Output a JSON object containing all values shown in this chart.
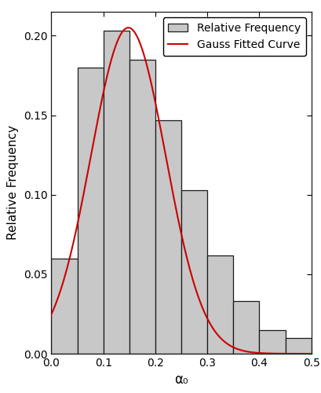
{
  "bin_edges": [
    0.0,
    0.05,
    0.1,
    0.15,
    0.2,
    0.25,
    0.3,
    0.35,
    0.4,
    0.45,
    0.5
  ],
  "bar_heights": [
    0.06,
    0.18,
    0.203,
    0.185,
    0.147,
    0.103,
    0.062,
    0.033,
    0.015,
    0.01
  ],
  "bar_color": "#c8c8c8",
  "bar_edgecolor": "#1a1a1a",
  "gauss_amplitude": 0.205,
  "gauss_mean": 0.148,
  "gauss_sigma": 0.072,
  "curve_color": "#cc0000",
  "curve_linewidth": 1.5,
  "xlabel": "α₀",
  "ylabel": "Relative Frequency",
  "xlim": [
    0.0,
    0.5
  ],
  "ylim": [
    0.0,
    0.215
  ],
  "xticks": [
    0.0,
    0.1,
    0.2,
    0.3,
    0.4,
    0.5
  ],
  "yticks": [
    0.0,
    0.05,
    0.1,
    0.15,
    0.2
  ],
  "legend_labels": [
    "Relative Frequency",
    "Gauss Fitted Curve"
  ],
  "legend_loc": "upper right",
  "tick_fontsize": 10,
  "xlabel_fontsize": 12,
  "ylabel_fontsize": 11,
  "legend_fontsize": 10,
  "background_color": "#ffffff"
}
